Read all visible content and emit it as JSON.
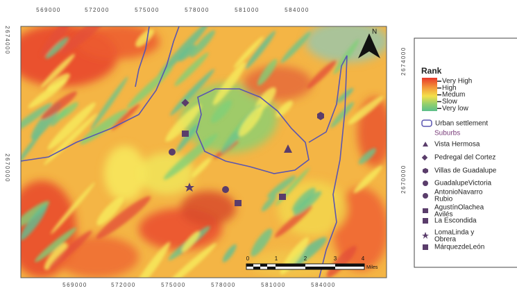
{
  "map": {
    "x_ticks": [
      "569000",
      "572000",
      "575000",
      "578000",
      "581000",
      "584000"
    ],
    "y_ticks": [
      "2674000",
      "2670000"
    ],
    "north": "N",
    "scale_bar": {
      "labels": [
        "0",
        "1",
        "2",
        "3",
        "4"
      ],
      "unit": "Miles"
    }
  },
  "legend": {
    "title": "Rank",
    "rank_classes": [
      "Very High",
      "High",
      "Medum",
      "Slow",
      "Very low"
    ],
    "urban": "Urban settlement",
    "suburbs_title": "Suburbs",
    "suburbs": [
      [
        "Vista Hermosa"
      ],
      [
        "Pedregal del Cortez"
      ],
      [
        "Villas de Guadalupe"
      ],
      [
        "GuadalupeVictoria"
      ],
      [
        "AntonioNavarro",
        "Rubio"
      ],
      [
        "AgustínOlachea",
        "Avilés"
      ],
      [
        "La Escondida"
      ],
      [
        "LomaLinda y",
        "Obrera"
      ],
      [
        "MárquezdeLeón"
      ]
    ]
  }
}
